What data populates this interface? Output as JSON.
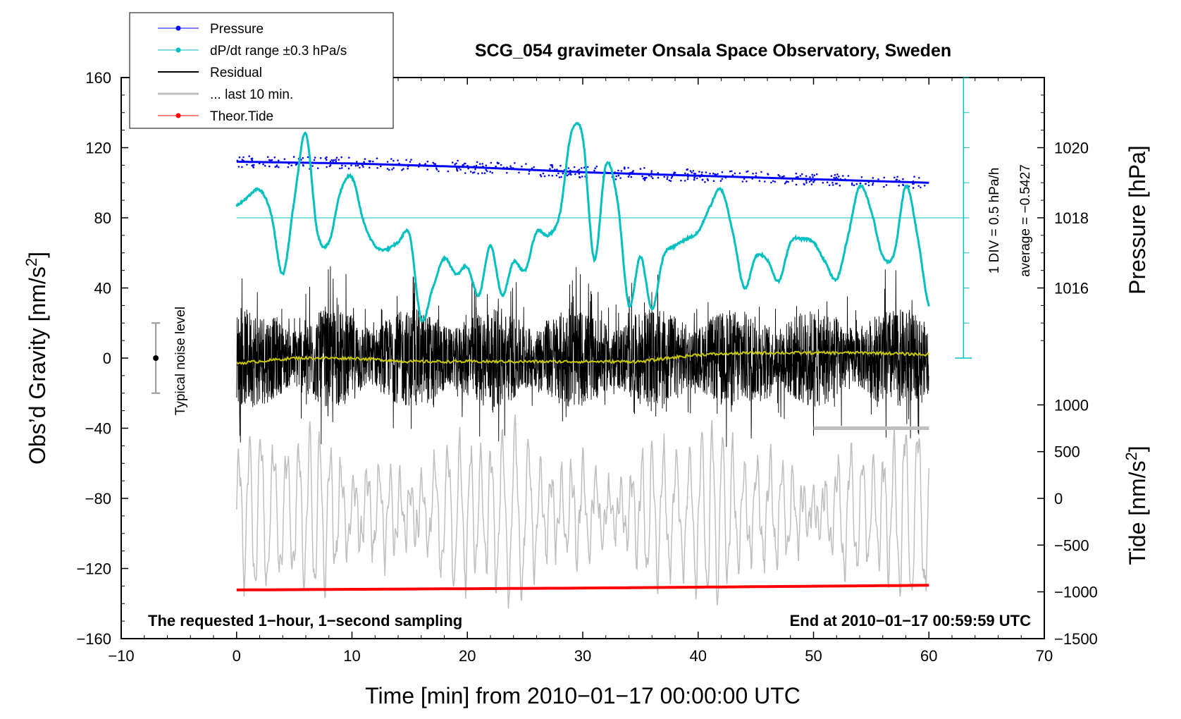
{
  "chart_data": {
    "type": "line",
    "title": "SCG_054 gravimeter Onsala Space Observatory, Sweden",
    "xlabel": "Time [min] from 2010−01−17 00:00:00 UTC",
    "ylabel_left": "Obs’d Gravity [nm/s",
    "ylabel_left_sup": "2",
    "ylabel_left_end": "]",
    "ylabel_right_top": "Pressure [hPa]",
    "ylabel_right_bottom": "Tide [nm/s",
    "ylabel_right_bottom_sup": "2",
    "ylabel_right_bottom_end": "]",
    "xlim": [
      -10,
      70
    ],
    "ylim": [
      -160,
      160
    ],
    "x_ticks": [
      -10,
      0,
      10,
      20,
      30,
      40,
      50,
      60,
      70
    ],
    "x_tick_labels": [
      "−10",
      "0",
      "10",
      "20",
      "30",
      "40",
      "50",
      "60",
      "70"
    ],
    "y_ticks": [
      160,
      120,
      80,
      40,
      0,
      -40,
      -80,
      -120,
      -160
    ],
    "y_tick_labels": [
      "160",
      "120",
      "80",
      "40",
      "0",
      "−40",
      "−80",
      "−120",
      "−160"
    ],
    "pressure_axis": {
      "ticks": [
        1020,
        1018,
        1016
      ],
      "tick_labels": [
        "1020",
        "1018",
        "1016"
      ],
      "gravity_at_1018": 80,
      "nm_s2_per_hPa": 20
    },
    "tide_axis": {
      "ticks": [
        1000,
        500,
        0,
        -500,
        -1000,
        -1500
      ],
      "tick_labels": [
        "1000",
        "500",
        "0",
        "−500",
        "−1000",
        "−1500"
      ],
      "gravity_at_zero": -80,
      "gravity_per_1000": 53.3
    },
    "legend": [
      {
        "label": "Pressure",
        "color": "#0000ff",
        "marker": true
      },
      {
        "label": "dP/dt range ±0.3 hPa/s",
        "color": "#00c8c8",
        "marker": true
      },
      {
        "label": "Residual",
        "color": "#000000",
        "marker": false
      },
      {
        "label": "... last 10 min.",
        "color": "#bfbfbf",
        "marker": false
      },
      {
        "label": "Theor.Tide",
        "color": "#ff0000",
        "marker": true
      }
    ],
    "series": [
      {
        "name": "Pressure",
        "unit": "hPa",
        "x": [
          0,
          10,
          20,
          30,
          40,
          50,
          60
        ],
        "values": [
          1019.6,
          1019.55,
          1019.45,
          1019.3,
          1019.2,
          1019.1,
          1019.0
        ]
      },
      {
        "name": "dP/dt",
        "unit": "nm/s2 (gravity axis)",
        "x": [
          0,
          1,
          2,
          3,
          4,
          5,
          6,
          7,
          8,
          9,
          10,
          11,
          12,
          13,
          14,
          15,
          16,
          17,
          18,
          19,
          20,
          21,
          22,
          23,
          24,
          25,
          26,
          27,
          28,
          29,
          30,
          31,
          32,
          33,
          34,
          35,
          36,
          37,
          38,
          39,
          40,
          41,
          42,
          43,
          44,
          45,
          46,
          47,
          48,
          49,
          50,
          51,
          52,
          53,
          54,
          55,
          56,
          57,
          58,
          59,
          60
        ],
        "values": [
          87,
          92,
          96,
          82,
          48,
          90,
          128,
          72,
          66,
          95,
          103,
          78,
          64,
          62,
          66,
          70,
          22,
          40,
          57,
          48,
          52,
          36,
          64,
          36,
          55,
          50,
          72,
          70,
          82,
          128,
          126,
          56,
          110,
          90,
          30,
          58,
          28,
          58,
          64,
          68,
          72,
          86,
          96,
          72,
          40,
          58,
          56,
          44,
          66,
          68,
          66,
          55,
          45,
          70,
          98,
          84,
          58,
          60,
          98,
          70,
          30
        ]
      },
      {
        "name": "Residual",
        "unit": "nm/s2",
        "x": [
          0,
          60
        ],
        "amplitude": 35
      },
      {
        "name": "Residual mean",
        "unit": "nm/s2",
        "x": [
          0,
          5,
          10,
          15,
          20,
          25,
          30,
          35,
          40,
          45,
          50,
          55,
          60
        ],
        "values": [
          -3,
          0,
          0,
          -2,
          -2,
          -2,
          -2,
          -2,
          2,
          3,
          3,
          3,
          2
        ]
      },
      {
        "name": "Last 10 min",
        "unit": "nm/s2",
        "x": [
          50,
          60
        ],
        "values": [
          -40,
          -40
        ]
      },
      {
        "name": "Theor.Tide",
        "unit": "nm/s2",
        "x": [
          0,
          30,
          60
        ],
        "values": [
          -980,
          -960,
          -930
        ]
      }
    ],
    "noise_level": {
      "label": "Typical noise level",
      "x": -7,
      "center": 0,
      "range": [
        -20,
        20
      ]
    },
    "pressure_scale": {
      "line1": "1 DIV = 0.5 hPa/h",
      "line2": "average = −0.5427"
    },
    "notes": {
      "left": "The requested 1−hour, 1−second sampling",
      "right": "End at 2010−01−17 00:59:59 UTC"
    },
    "colors": {
      "pressure": "#0000ff",
      "dpdt": "#00c0c0",
      "residual": "#000000",
      "residual_mean": "#c8c800",
      "last10": "#bfbfbf",
      "tide": "#ff0000",
      "tide_grey": "#bfbfbf"
    }
  }
}
